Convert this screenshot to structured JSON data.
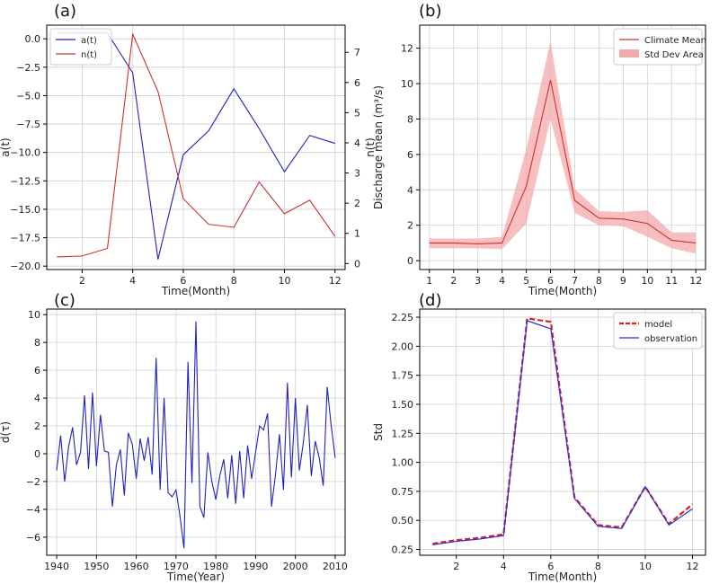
{
  "chart_data": [
    {
      "id": "a",
      "panel_label": "(a)",
      "type": "line",
      "xlabel": "Time(Month)",
      "ylabel": "a(t)",
      "y2label": "n(t)",
      "xlim": [
        0.6,
        12.4
      ],
      "ylim": [
        -20.3,
        1.2
      ],
      "y2lim": [
        -0.2,
        7.9
      ],
      "xticks": [
        2,
        4,
        6,
        8,
        10,
        12
      ],
      "yticks": [
        0.0,
        -2.5,
        -5.0,
        -7.5,
        -10.0,
        -12.5,
        -15.0,
        -17.5,
        -20.0
      ],
      "ytick_labels": [
        "0.0",
        "−2.5",
        "−5.0",
        "−7.5",
        "−10.0",
        "−12.5",
        "−15.0",
        "−17.5",
        "−20.0"
      ],
      "y2ticks": [
        0,
        1,
        2,
        3,
        4,
        5,
        6,
        7
      ],
      "grid": true,
      "legend_position": "top-left",
      "series": [
        {
          "name": "a(t)",
          "color": "#2020c0",
          "axis": "left",
          "x": [
            1,
            2,
            3,
            4,
            5,
            6,
            7,
            8,
            9,
            10,
            11,
            12
          ],
          "values": [
            0.5,
            0.5,
            0.5,
            -3.0,
            -19.4,
            -10.2,
            -8.1,
            -4.4,
            -7.9,
            -11.7,
            -8.5,
            -9.2
          ]
        },
        {
          "name": "n(t)",
          "color": "#d03030",
          "axis": "right",
          "x": [
            1,
            2,
            3,
            4,
            5,
            6,
            7,
            8,
            9,
            10,
            11,
            12
          ],
          "values": [
            0.22,
            0.25,
            0.5,
            7.6,
            5.7,
            2.15,
            1.3,
            1.2,
            2.7,
            1.65,
            2.1,
            0.9
          ]
        }
      ]
    },
    {
      "id": "b",
      "panel_label": "(b)",
      "type": "line",
      "xlabel": "Time(Month)",
      "ylabel": "Discharge mean (m³/s)",
      "xlim": [
        0.6,
        12.4
      ],
      "ylim": [
        -0.5,
        13.3
      ],
      "xticks": [
        1,
        2,
        3,
        4,
        5,
        6,
        7,
        8,
        9,
        10,
        11,
        12
      ],
      "yticks": [
        0,
        2,
        4,
        6,
        8,
        10,
        12
      ],
      "grid": true,
      "legend_position": "top-right",
      "series": [
        {
          "name": "Climate Mean",
          "color": "#d03030",
          "x": [
            1,
            2,
            3,
            4,
            5,
            6,
            7,
            8,
            9,
            10,
            11,
            12
          ],
          "values": [
            1.0,
            1.0,
            0.95,
            1.0,
            4.2,
            10.2,
            3.4,
            2.4,
            2.35,
            2.1,
            1.15,
            1.0
          ]
        }
      ],
      "band": {
        "name": "Std Dev Area",
        "color": "#f4aaaa",
        "upper": [
          1.25,
          1.25,
          1.25,
          1.35,
          6.3,
          12.4,
          4.05,
          2.8,
          2.75,
          2.85,
          1.6,
          1.6
        ],
        "lower": [
          0.7,
          0.7,
          0.7,
          0.65,
          2.1,
          8.0,
          2.7,
          2.0,
          1.95,
          1.35,
          0.7,
          0.4
        ]
      }
    },
    {
      "id": "c",
      "panel_label": "(c)",
      "type": "line",
      "xlabel": "Time(Year)",
      "ylabel": "d(τ)",
      "xlim": [
        1937.5,
        2012.5
      ],
      "ylim": [
        -7.3,
        10.4
      ],
      "xticks": [
        1940,
        1950,
        1960,
        1970,
        1980,
        1990,
        2000,
        2010
      ],
      "yticks": [
        -6,
        -4,
        -2,
        0,
        2,
        4,
        6,
        8,
        10
      ],
      "ytick_labels": [
        "−6",
        "−4",
        "−2",
        "0",
        "2",
        "4",
        "6",
        "8",
        "10"
      ],
      "grid": true,
      "series": [
        {
          "name": "d(τ)",
          "color": "#2020c0",
          "x": [
            1940,
            1941,
            1942,
            1943,
            1944,
            1945,
            1946,
            1947,
            1948,
            1949,
            1950,
            1951,
            1952,
            1953,
            1954,
            1955,
            1956,
            1957,
            1958,
            1959,
            1960,
            1961,
            1962,
            1963,
            1964,
            1965,
            1966,
            1967,
            1968,
            1969,
            1970,
            1971,
            1972,
            1973,
            1974,
            1975,
            1976,
            1977,
            1978,
            1979,
            1980,
            1981,
            1982,
            1983,
            1984,
            1985,
            1986,
            1987,
            1988,
            1989,
            1990,
            1991,
            1992,
            1993,
            1994,
            1995,
            1996,
            1997,
            1998,
            1999,
            2000,
            2001,
            2002,
            2003,
            2004,
            2005,
            2006,
            2007,
            2008,
            2009,
            2010
          ],
          "values": [
            -1.2,
            1.3,
            -2.0,
            0.5,
            1.9,
            -0.8,
            0.1,
            4.2,
            -1.1,
            4.4,
            -0.9,
            2.8,
            0.2,
            0.1,
            -3.8,
            -0.8,
            0.3,
            -3.0,
            1.5,
            0.7,
            -1.8,
            1.1,
            -0.5,
            1.2,
            -1.5,
            6.9,
            -2.6,
            4.0,
            -2.8,
            -3.1,
            -2.6,
            -4.5,
            -6.8,
            6.6,
            -2.1,
            9.5,
            -3.8,
            -4.6,
            0.1,
            -2.0,
            -3.3,
            -1.6,
            -0.4,
            -3.2,
            -0.1,
            -3.6,
            0.2,
            -3.2,
            0.6,
            -1.8,
            0.1,
            2.0,
            1.7,
            2.9,
            -3.8,
            -1.5,
            1.4,
            -2.6,
            5.1,
            -1.7,
            4.0,
            -1.2,
            0.8,
            3.5,
            -1.6,
            0.9,
            -0.3,
            -2.3,
            4.8,
            2.0,
            -0.3
          ]
        }
      ]
    },
    {
      "id": "d",
      "panel_label": "(d)",
      "type": "line",
      "xlabel": "Time(Month)",
      "ylabel": "Std",
      "xlim": [
        0.45,
        12.55
      ],
      "ylim": [
        0.2,
        2.32
      ],
      "xticks": [
        2,
        4,
        6,
        8,
        10,
        12
      ],
      "yticks": [
        0.25,
        0.5,
        0.75,
        1.0,
        1.25,
        1.5,
        1.75,
        2.0,
        2.25
      ],
      "ytick_labels": [
        "0.25",
        "0.50",
        "0.75",
        "1.00",
        "1.25",
        "1.50",
        "1.75",
        "2.00",
        "2.25"
      ],
      "grid": true,
      "legend_position": "top-right",
      "series": [
        {
          "name": "model",
          "color": "#e02020",
          "dashed": true,
          "x": [
            1,
            2,
            3,
            4,
            5,
            6,
            7,
            8,
            9,
            10,
            11,
            12
          ],
          "values": [
            0.3,
            0.33,
            0.35,
            0.38,
            2.24,
            2.21,
            0.7,
            0.46,
            0.44,
            0.79,
            0.47,
            0.64
          ]
        },
        {
          "name": "observation",
          "color": "#3030d0",
          "dashed": false,
          "x": [
            1,
            2,
            3,
            4,
            5,
            6,
            7,
            8,
            9,
            10,
            11,
            12
          ],
          "values": [
            0.29,
            0.32,
            0.34,
            0.37,
            2.22,
            2.15,
            0.69,
            0.45,
            0.43,
            0.79,
            0.46,
            0.6
          ]
        }
      ]
    }
  ]
}
